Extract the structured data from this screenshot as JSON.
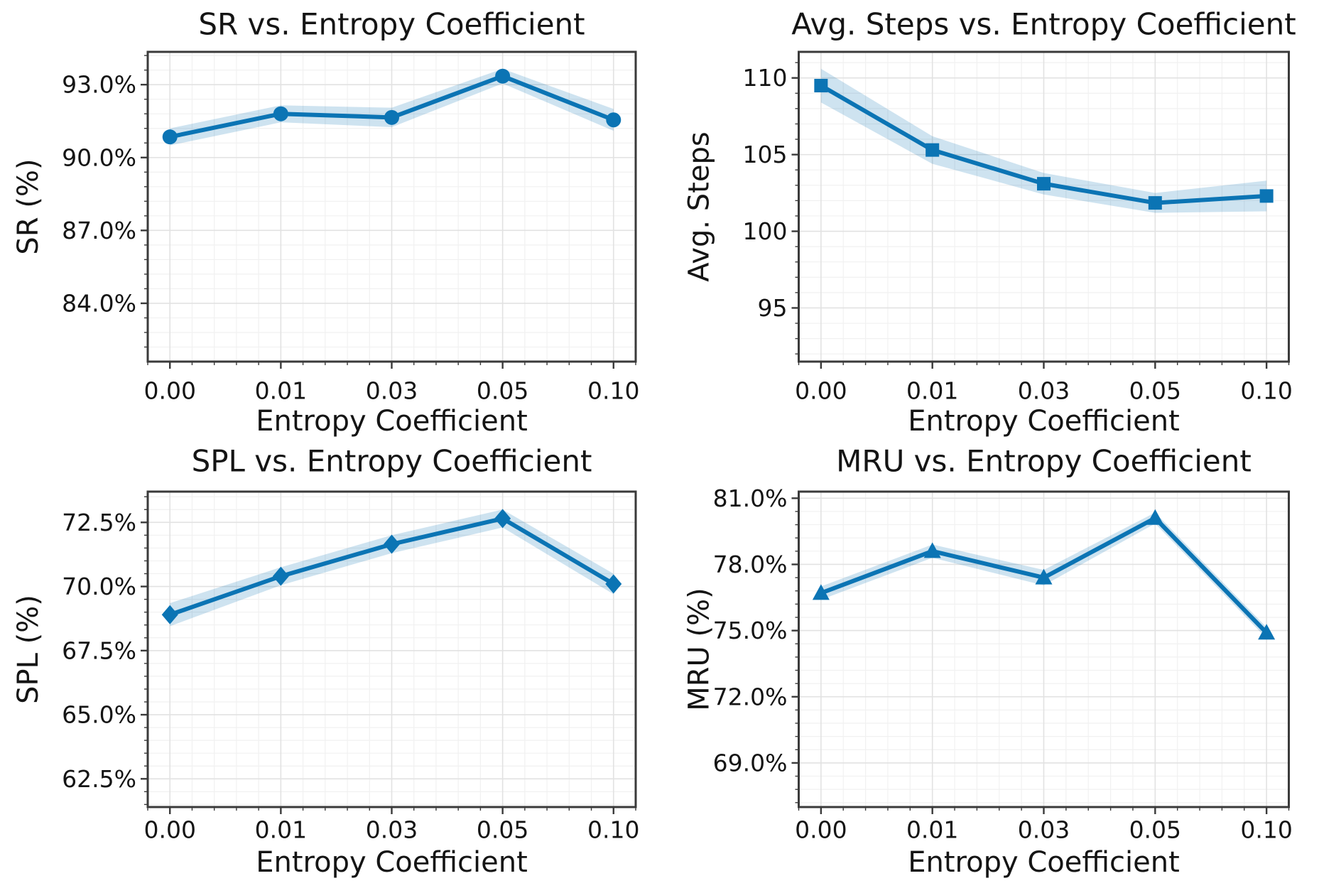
{
  "figure": {
    "background": "#ffffff",
    "colors": {
      "accent": "#0b74b4",
      "band_fill": "#0b74b4",
      "band_opacity": 0.2,
      "grid_major": "#e2e2e2",
      "grid_minor": "#f1f1f1",
      "spine": "#3a3a3a",
      "tick": "#3a3a3a",
      "text": "#141414"
    },
    "x_categories": [
      "0.00",
      "0.01",
      "0.03",
      "0.05",
      "0.10"
    ],
    "xlabel": "Entropy Coefficient"
  },
  "chart_data": [
    {
      "type": "line",
      "key": "sr",
      "title": "SR vs. Entropy Coefficient",
      "xlabel": "Entropy Coefficient",
      "ylabel": "SR (%)",
      "marker": "circle",
      "categories": [
        "0.00",
        "0.01",
        "0.03",
        "0.05",
        "0.10"
      ],
      "values": [
        90.85,
        91.8,
        91.65,
        93.35,
        91.55
      ],
      "band_err": [
        0.35,
        0.35,
        0.4,
        0.3,
        0.45
      ],
      "yticks": [
        84,
        87,
        90,
        93
      ],
      "ytick_labels": [
        "84.0%",
        "87.0%",
        "90.0%",
        "93.0%"
      ],
      "ylim": [
        81.6,
        94.35
      ],
      "y_minor_step": 0.6,
      "grid": "both",
      "legend": "none"
    },
    {
      "type": "line",
      "key": "avg_steps",
      "title": "Avg. Steps vs. Entropy Coefficient",
      "xlabel": "Entropy Coefficient",
      "ylabel": "Avg. Steps",
      "marker": "square",
      "categories": [
        "0.00",
        "0.01",
        "0.03",
        "0.05",
        "0.10"
      ],
      "values": [
        109.5,
        105.3,
        103.1,
        101.85,
        102.3
      ],
      "band_err": [
        1.1,
        0.9,
        0.7,
        0.65,
        1.0
      ],
      "yticks": [
        95,
        100,
        105,
        110
      ],
      "ytick_labels": [
        "95",
        "100",
        "105",
        "110"
      ],
      "ylim": [
        91.5,
        111.7
      ],
      "y_minor_step": 1,
      "grid": "both",
      "legend": "none"
    },
    {
      "type": "line",
      "key": "spl",
      "title": "SPL vs. Entropy Coefficient",
      "xlabel": "Entropy Coefficient",
      "ylabel": "SPL (%)",
      "marker": "diamond",
      "categories": [
        "0.00",
        "0.01",
        "0.03",
        "0.05",
        "0.10"
      ],
      "values": [
        68.9,
        70.4,
        71.65,
        72.65,
        70.1
      ],
      "band_err": [
        0.45,
        0.35,
        0.35,
        0.35,
        0.4
      ],
      "yticks": [
        62.5,
        65.0,
        67.5,
        70.0,
        72.5
      ],
      "ytick_labels": [
        "62.5%",
        "65.0%",
        "67.5%",
        "70.0%",
        "72.5%"
      ],
      "ylim": [
        61.4,
        73.7
      ],
      "y_minor_step": 0.5,
      "grid": "both",
      "legend": "none"
    },
    {
      "type": "line",
      "key": "mru",
      "title": "MRU vs. Entropy Coefficient",
      "xlabel": "Entropy Coefficient",
      "ylabel": "MRU (%)",
      "marker": "triangle",
      "categories": [
        "0.00",
        "0.01",
        "0.03",
        "0.05",
        "0.10"
      ],
      "values": [
        76.7,
        78.6,
        77.4,
        80.1,
        74.9
      ],
      "band_err": [
        0.3,
        0.3,
        0.35,
        0.25,
        0.25
      ],
      "yticks": [
        69.0,
        72.0,
        75.0,
        78.0,
        81.0
      ],
      "ytick_labels": [
        "69.0%",
        "72.0%",
        "75.0%",
        "78.0%",
        "81.0%"
      ],
      "ylim": [
        67.0,
        81.3
      ],
      "y_minor_step": 0.6,
      "grid": "both",
      "legend": "none"
    }
  ]
}
